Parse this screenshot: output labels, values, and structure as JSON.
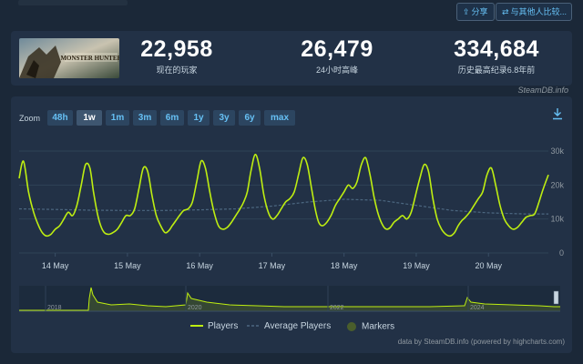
{
  "header": {
    "share_icon": "share-icon",
    "share_label": "分享",
    "compare_icon": "compare-icon",
    "compare_label": "与其他人比较..."
  },
  "game": {
    "thumbnail_text": "MONSTER HUNTER"
  },
  "stats": [
    {
      "value": "22,958",
      "label": "现在的玩家"
    },
    {
      "value": "26,479",
      "label": "24小时高峰"
    },
    {
      "value": "334,684",
      "label": "历史最高纪录6.8年前"
    }
  ],
  "panel": {
    "credit_top": "SteamDB.info",
    "zoom_label": "Zoom",
    "zoom_options": [
      "48h",
      "1w",
      "1m",
      "3m",
      "6m",
      "1y",
      "3y",
      "6y",
      "max"
    ],
    "zoom_selected": "1w",
    "download_icon": "download-icon",
    "credit_bottom": "data by SteamDB.info (powered by highcharts.com)"
  },
  "legend": {
    "players": "Players",
    "average": "Average Players",
    "markers": "Markers"
  },
  "colors": {
    "players": "#beee11",
    "average": "#4c6780",
    "markers": "#4a5e2c",
    "background": "#1b2838",
    "panel": "#223146",
    "link": "#66c0f4"
  },
  "chart_data": {
    "type": "line",
    "x_tick_labels": [
      "14 May",
      "15 May",
      "16 May",
      "17 May",
      "18 May",
      "19 May",
      "20 May"
    ],
    "x_range_days": [
      13.5,
      20.83
    ],
    "y_tick_labels": [
      "0",
      "10k",
      "20k",
      "30k"
    ],
    "ylim": [
      0,
      30000
    ],
    "grid": true,
    "legend_position": "bottom-center",
    "series": [
      {
        "name": "Players",
        "x": [
          13.5,
          13.56,
          13.63,
          13.7,
          13.77,
          13.82,
          13.88,
          13.94,
          14.0,
          14.06,
          14.12,
          14.18,
          14.24,
          14.3,
          14.36,
          14.42,
          14.48,
          14.53,
          14.58,
          14.63,
          14.68,
          14.74,
          14.8,
          14.86,
          14.92,
          14.98,
          15.04,
          15.1,
          15.16,
          15.22,
          15.28,
          15.34,
          15.4,
          15.46,
          15.52,
          15.57,
          15.62,
          15.67,
          15.72,
          15.78,
          15.84,
          15.9,
          15.96,
          16.02,
          16.08,
          16.14,
          16.2,
          16.26,
          16.32,
          16.38,
          16.44,
          16.5,
          16.56,
          16.61,
          16.66,
          16.71,
          16.77,
          16.83,
          16.89,
          16.95,
          17.01,
          17.07,
          17.13,
          17.19,
          17.25,
          17.31,
          17.37,
          17.43,
          17.49,
          17.55,
          17.6,
          17.65,
          17.7,
          17.76,
          17.82,
          17.88,
          17.94,
          18.0,
          18.06,
          18.12,
          18.18,
          18.24,
          18.3,
          18.36,
          18.42,
          18.48,
          18.54,
          18.59,
          18.64,
          18.69,
          18.75,
          18.81,
          18.87,
          18.93,
          18.99,
          19.05,
          19.11,
          19.17,
          19.23,
          19.29,
          19.35,
          19.41,
          19.47,
          19.53,
          19.58,
          19.63,
          19.68,
          19.74,
          19.8,
          19.86,
          19.92,
          19.98,
          20.04,
          20.1,
          20.16,
          20.22,
          20.28,
          20.34,
          20.4,
          20.46,
          20.52,
          20.58,
          20.64,
          20.7,
          20.76,
          20.83
        ],
        "values": [
          22000,
          27000,
          18000,
          12000,
          8000,
          6000,
          5000,
          5500,
          7000,
          8000,
          10000,
          12000,
          11000,
          14000,
          20000,
          26000,
          25000,
          18000,
          12000,
          8000,
          6000,
          5500,
          6000,
          7000,
          9000,
          11000,
          11000,
          13000,
          19000,
          25000,
          24000,
          17000,
          11000,
          8000,
          6000,
          6500,
          8000,
          9500,
          11000,
          12500,
          13000,
          15000,
          21000,
          27000,
          25000,
          18000,
          12000,
          8000,
          7000,
          7500,
          9000,
          11000,
          13000,
          15000,
          18000,
          24000,
          29000,
          25000,
          17000,
          12000,
          10000,
          11000,
          13000,
          15000,
          16000,
          18000,
          23000,
          28000,
          26000,
          19000,
          13000,
          9000,
          8000,
          9000,
          11000,
          14000,
          16000,
          18000,
          20000,
          19000,
          21000,
          26000,
          28000,
          23000,
          16000,
          11000,
          8000,
          7000,
          7500,
          9000,
          10000,
          11000,
          10000,
          12000,
          17000,
          22000,
          26000,
          24000,
          16000,
          10000,
          7000,
          5500,
          5000,
          6000,
          8000,
          9500,
          10500,
          12000,
          14000,
          16000,
          18000,
          23000,
          25000,
          20000,
          14000,
          10000,
          8000,
          7000,
          7500,
          9000,
          10500,
          11000,
          11500,
          15000,
          19000,
          23000
        ]
      },
      {
        "name": "Average Players",
        "x": [
          13.5,
          14.0,
          14.5,
          15.0,
          15.5,
          16.0,
          16.5,
          17.0,
          17.5,
          18.0,
          18.5,
          19.0,
          19.5,
          20.0,
          20.5,
          20.83
        ],
        "values": [
          13000,
          12800,
          12600,
          12500,
          12500,
          12700,
          13000,
          13800,
          15000,
          15800,
          15500,
          14000,
          12500,
          11800,
          11500,
          11500
        ]
      }
    ],
    "navigator": {
      "x_tick_labels": [
        "2018",
        "2020",
        "2022",
        "2024"
      ]
    }
  }
}
